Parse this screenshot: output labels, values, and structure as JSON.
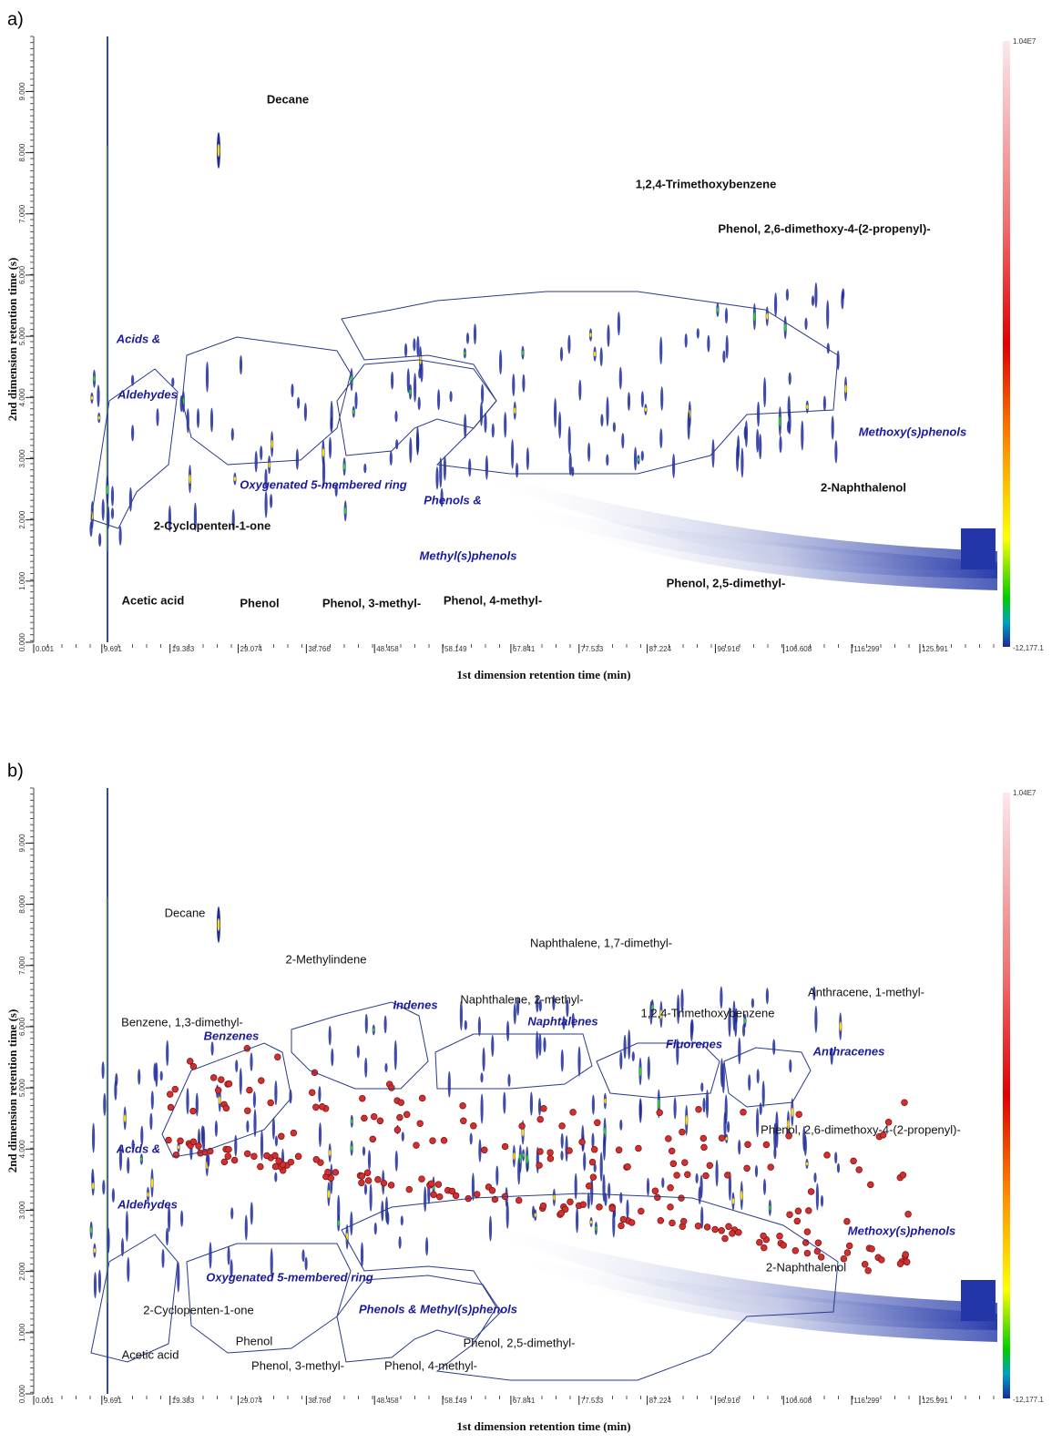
{
  "chart_data": [
    {
      "type": "contour",
      "panel_label": "a)",
      "x_label": "1st dimension retention time (min)",
      "y_label": "2nd dimension retention time (s)",
      "xlim": [
        0.001,
        137
      ],
      "ylim": [
        0,
        9.9
      ],
      "xticks": [
        0.001,
        9.691,
        19.383,
        29.074,
        38.766,
        48.458,
        58.149,
        67.841,
        77.533,
        87.224,
        96.916,
        106.608,
        116.299,
        125.991
      ],
      "yticks": [
        {
          "value": 0,
          "label": "0.000"
        },
        {
          "value": 1,
          "label": "1.000"
        },
        {
          "value": 2,
          "label": "2.000"
        },
        {
          "value": 3,
          "label": "3.000"
        },
        {
          "value": 4,
          "label": "4.000"
        },
        {
          "value": 5,
          "label": "5.000"
        },
        {
          "value": 6,
          "label": "6.000"
        },
        {
          "value": 7,
          "label": "7.000"
        },
        {
          "value": 8,
          "label": "8.000"
        },
        {
          "value": 9,
          "label": "9.000"
        }
      ],
      "colorbar_labels": [
        "1.04E7",
        "-12,177.1"
      ],
      "compound_labels": [
        "Decane",
        "1,2,4-Trimethoxybenzene",
        "Phenol, 2,6-dimethoxy-4-(2-propenyl)-",
        "2-Naphthalenol",
        "2-Cyclopenten-1-one",
        "Phenol, 2,5-dimethyl-",
        "Acetic acid",
        "Phenol",
        "Phenol, 3-methyl-",
        "Phenol, 4-methyl-"
      ],
      "group_labels": [
        "Acids &",
        "Aldehydes",
        "Methoxy(s)phenols",
        "Oxygenated 5-membered ring",
        "Phenols &",
        "Methyl(s)phenols"
      ]
    },
    {
      "type": "contour",
      "panel_label": "b)",
      "x_label": "1st dimension retention time (min)",
      "y_label": "2nd dimension retention time (s)",
      "xlim": [
        0.001,
        137
      ],
      "ylim": [
        0,
        9.9
      ],
      "xticks": [
        0.001,
        9.691,
        19.383,
        29.074,
        38.766,
        48.458,
        58.149,
        67.841,
        77.533,
        87.224,
        96.916,
        106.608,
        116.299,
        125.991
      ],
      "yticks": [
        {
          "value": 0,
          "label": "0.000"
        },
        {
          "value": 1,
          "label": "1.000"
        },
        {
          "value": 2,
          "label": "2.000"
        },
        {
          "value": 3,
          "label": "3.000"
        },
        {
          "value": 4,
          "label": "4.000"
        },
        {
          "value": 5,
          "label": "5.000"
        },
        {
          "value": 6,
          "label": "6.000"
        },
        {
          "value": 7,
          "label": "7.000"
        },
        {
          "value": 8,
          "label": "8.000"
        },
        {
          "value": 9,
          "label": "9.000"
        }
      ],
      "colorbar_labels": [
        "1.04E7",
        "-12,177.1"
      ],
      "compound_labels": [
        "Decane",
        "2-Methylindene",
        "Naphthalene, 1,7-dimethyl-",
        "Naphthalene, 2-methyl-",
        "Benzene, 1,3-dimethyl-",
        "1,2,4-Trimethoxybenzene",
        "Anthracene, 1-methyl-",
        "Phenol, 2,6-dimethoxy-4-(2-propenyl)-",
        "2-Naphthalenol",
        "2-Cyclopenten-1-one",
        "Phenol",
        "Phenol, 2,5-dimethyl-",
        "Acetic acid",
        "Phenol, 3-methyl-",
        "Phenol, 4-methyl-"
      ],
      "group_labels": [
        "Indenes",
        "Naphtalenes",
        "Benzenes",
        "Fluorenes",
        "Anthracenes",
        "Acids &",
        "Aldehydes",
        "Methoxy(s)phenols",
        "Oxygenated 5-membered ring",
        "Phenols & Methyl(s)phenols"
      ]
    }
  ]
}
